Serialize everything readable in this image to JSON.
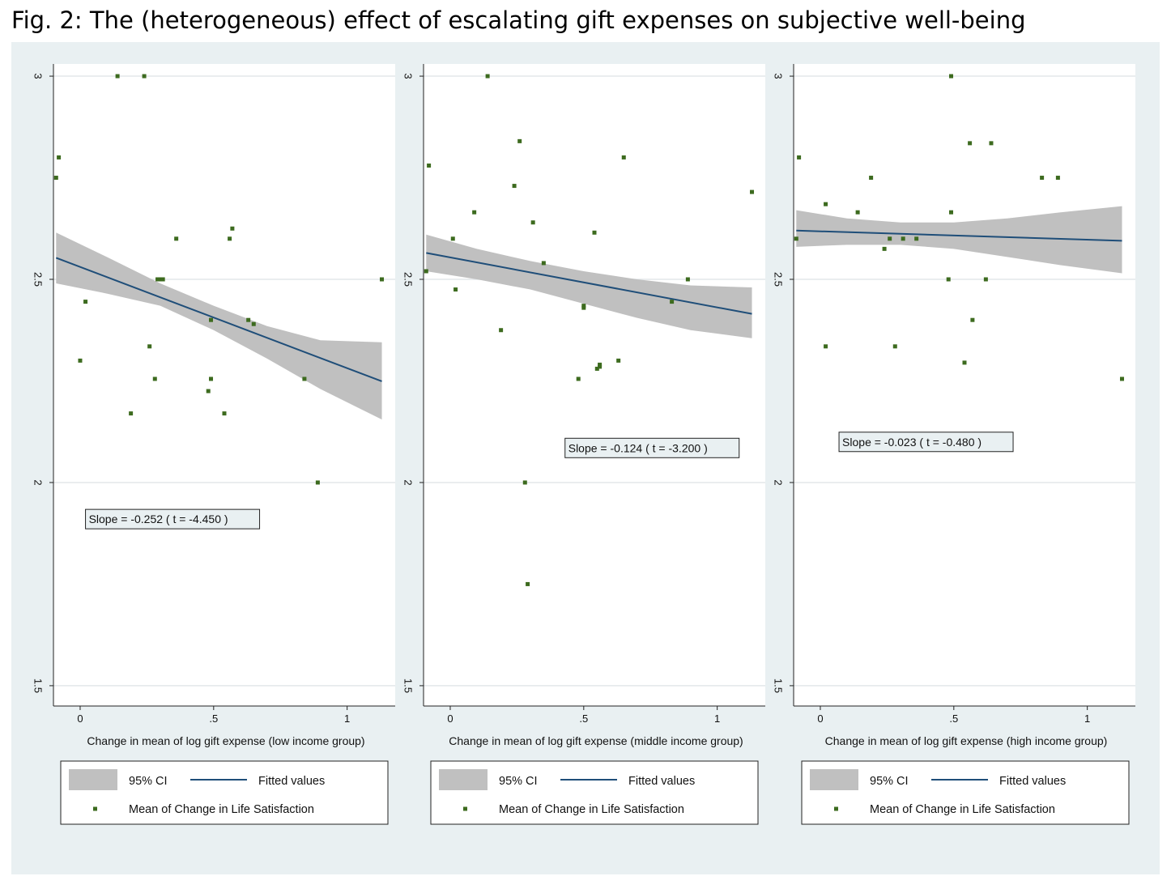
{
  "title": "Fig. 2: The (heterogeneous) effect of escalating gift expenses on subjective well-being",
  "colors": {
    "background": "#e9f0f2",
    "plot_area": "#ffffff",
    "ci_band": "#c0c0c0",
    "fitted_line": "#1f4e79",
    "markers": "#3d6b1f",
    "grid": "#e3e7ea"
  },
  "chart_data": [
    {
      "type": "scatter",
      "xlabel": "Change in mean of log gift expense (low income group)",
      "ylabel": "",
      "xlim": [
        -0.1,
        1.18
      ],
      "ylim": [
        1.45,
        3.03
      ],
      "xticks": [
        0,
        0.5,
        1
      ],
      "xtick_labels": [
        "0",
        ".5",
        "1"
      ],
      "yticks": [
        1.5,
        2,
        2.5,
        3
      ],
      "ytick_labels": [
        "1.5",
        "2",
        "2.5",
        "3"
      ],
      "grid": true,
      "slope_label": "Slope = -0.252 ( t = -4.450 )",
      "slope_label_at": [
        0.02,
        1.91
      ],
      "fit": {
        "x": [
          -0.09,
          1.13
        ],
        "y": [
          2.553,
          2.249
        ]
      },
      "ci": {
        "x": [
          -0.09,
          0.1,
          0.3,
          0.5,
          0.7,
          0.9,
          1.13
        ],
        "lower": [
          2.49,
          2.465,
          2.435,
          2.375,
          2.305,
          2.23,
          2.155
        ],
        "upper": [
          2.615,
          2.555,
          2.49,
          2.435,
          2.385,
          2.35,
          2.345
        ]
      },
      "points": {
        "x": [
          0.14,
          0.24,
          -0.08,
          -0.09,
          0.36,
          0.57,
          0.56,
          0.02,
          0.3,
          0.29,
          0.31,
          1.13,
          0.49,
          0.63,
          0.65,
          0.26,
          0.0,
          0.28,
          0.49,
          0.48,
          0.84,
          0.19,
          0.54,
          0.89
        ],
        "y": [
          3.0,
          3.0,
          2.8,
          2.75,
          2.6,
          2.625,
          2.6,
          2.445,
          2.5,
          2.5,
          2.5,
          2.5,
          2.4,
          2.4,
          2.39,
          2.335,
          2.3,
          2.255,
          2.255,
          2.225,
          2.255,
          2.17,
          2.17,
          2.0
        ]
      },
      "legend": {
        "ci_label": "95% CI",
        "fit_label": "Fitted values",
        "points_label": "Mean of Change in Life Satisfaction"
      }
    },
    {
      "type": "scatter",
      "xlabel": "Change in mean of log gift expense (middle income group)",
      "ylabel": "",
      "xlim": [
        -0.1,
        1.18
      ],
      "ylim": [
        1.45,
        3.03
      ],
      "xticks": [
        0,
        0.5,
        1
      ],
      "xtick_labels": [
        "0",
        ".5",
        "1"
      ],
      "yticks": [
        1.5,
        2,
        2.5,
        3
      ],
      "ytick_labels": [
        "1.5",
        "2",
        "2.5",
        "3"
      ],
      "grid": true,
      "slope_label": "Slope = -0.124 ( t = -3.200 )",
      "slope_label_at": [
        0.43,
        2.085
      ],
      "fit": {
        "x": [
          -0.09,
          1.13
        ],
        "y": [
          2.565,
          2.415
        ]
      },
      "ci": {
        "x": [
          -0.09,
          0.1,
          0.3,
          0.5,
          0.7,
          0.9,
          1.13
        ],
        "lower": [
          2.52,
          2.5,
          2.475,
          2.44,
          2.405,
          2.375,
          2.355
        ],
        "upper": [
          2.61,
          2.575,
          2.545,
          2.52,
          2.5,
          2.485,
          2.48
        ]
      },
      "points": {
        "x": [
          0.14,
          0.26,
          -0.08,
          0.24,
          0.65,
          1.13,
          0.09,
          0.31,
          0.54,
          0.01,
          0.35,
          -0.09,
          0.89,
          0.02,
          0.83,
          0.5,
          0.5,
          0.19,
          0.63,
          0.56,
          0.56,
          0.55,
          0.48,
          0.28,
          0.29
        ],
        "y": [
          3.0,
          2.84,
          2.78,
          2.73,
          2.8,
          2.715,
          2.665,
          2.64,
          2.615,
          2.6,
          2.54,
          2.52,
          2.5,
          2.475,
          2.445,
          2.435,
          2.43,
          2.375,
          2.3,
          2.29,
          2.285,
          2.28,
          2.255,
          2.0,
          1.75
        ]
      },
      "legend": {
        "ci_label": "95% CI",
        "fit_label": "Fitted values",
        "points_label": "Mean of Change in Life Satisfaction"
      }
    },
    {
      "type": "scatter",
      "xlabel": "Change in mean of log gift expense (high income group)",
      "ylabel": "",
      "xlim": [
        -0.1,
        1.18
      ],
      "ylim": [
        1.45,
        3.03
      ],
      "xticks": [
        0,
        0.5,
        1
      ],
      "xtick_labels": [
        "0",
        ".5",
        "1"
      ],
      "yticks": [
        1.5,
        2,
        2.5,
        3
      ],
      "ytick_labels": [
        "1.5",
        "2",
        "2.5",
        "3"
      ],
      "grid": true,
      "slope_label": "Slope = -0.023 ( t = -0.480 )",
      "slope_label_at": [
        0.07,
        2.1
      ],
      "fit": {
        "x": [
          -0.09,
          1.13
        ],
        "y": [
          2.62,
          2.595
        ]
      },
      "ci": {
        "x": [
          -0.09,
          0.1,
          0.3,
          0.5,
          0.7,
          0.9,
          1.13
        ],
        "lower": [
          2.58,
          2.585,
          2.585,
          2.575,
          2.555,
          2.535,
          2.515
        ],
        "upper": [
          2.67,
          2.65,
          2.64,
          2.64,
          2.65,
          2.665,
          2.68
        ]
      },
      "points": {
        "x": [
          0.49,
          0.56,
          0.64,
          -0.08,
          0.19,
          0.83,
          0.89,
          0.02,
          0.14,
          0.49,
          -0.09,
          0.26,
          0.31,
          0.36,
          0.24,
          0.48,
          0.62,
          0.02,
          0.28,
          0.57,
          0.54,
          1.13
        ],
        "y": [
          3.0,
          2.835,
          2.835,
          2.8,
          2.75,
          2.75,
          2.75,
          2.685,
          2.665,
          2.665,
          2.6,
          2.6,
          2.6,
          2.6,
          2.575,
          2.5,
          2.5,
          2.335,
          2.335,
          2.4,
          2.295,
          2.255
        ]
      },
      "legend": {
        "ci_label": "95% CI",
        "fit_label": "Fitted values",
        "points_label": "Mean of Change in Life Satisfaction"
      }
    }
  ]
}
